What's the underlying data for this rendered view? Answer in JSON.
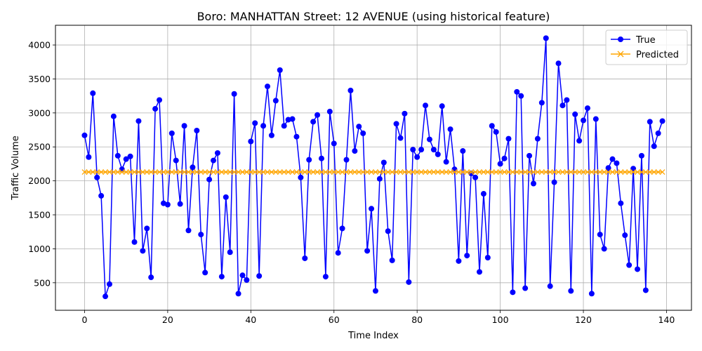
{
  "chart_data": {
    "type": "line",
    "title": "Boro: MANHATTAN Street: 12 AVENUE (using historical feature)",
    "xlabel": "Time Index",
    "ylabel": "Traffic Volume",
    "xlim": [
      -7,
      146
    ],
    "ylim": [
      95,
      4290
    ],
    "xticks": [
      0,
      20,
      40,
      60,
      80,
      100,
      120,
      140
    ],
    "yticks": [
      500,
      1000,
      1500,
      2000,
      2500,
      3000,
      3500,
      4000
    ],
    "grid": true,
    "legend_position": "top-right",
    "series": [
      {
        "name": "True",
        "color": "#0000ff",
        "marker": "circle",
        "values": [
          2670,
          2350,
          3290,
          2050,
          1780,
          300,
          480,
          2950,
          2370,
          2170,
          2320,
          2360,
          1100,
          2880,
          970,
          1300,
          580,
          3060,
          3190,
          1670,
          1650,
          2700,
          2300,
          1660,
          2810,
          1270,
          2200,
          2740,
          1210,
          650,
          2020,
          2300,
          2410,
          590,
          1760,
          950,
          3280,
          340,
          610,
          540,
          2580,
          2850,
          600,
          2810,
          3390,
          2670,
          3180,
          3630,
          2810,
          2900,
          2910,
          2650,
          2050,
          860,
          2310,
          2870,
          2970,
          2330,
          590,
          3020,
          2550,
          940,
          1300,
          2310,
          3330,
          2440,
          2800,
          2700,
          970,
          1590,
          380,
          2030,
          2270,
          1260,
          830,
          2840,
          2630,
          2990,
          510,
          2460,
          2350,
          2460,
          3110,
          2610,
          2460,
          2390,
          3100,
          2280,
          2760,
          2170,
          820,
          2440,
          900,
          2110,
          2050,
          660,
          1810,
          870,
          2810,
          2720,
          2250,
          2330,
          2620,
          360,
          3310,
          3250,
          420,
          2370,
          1960,
          2620,
          3150,
          4100,
          450,
          1980,
          3730,
          3110,
          3190,
          380,
          2980,
          2590,
          2890,
          3070,
          340,
          2910,
          1210,
          1000,
          2190,
          2320,
          2260,
          1670,
          1200,
          760,
          2180,
          700,
          2370,
          390,
          2870,
          2510,
          2700,
          2880
        ]
      },
      {
        "name": "Predicted",
        "color": "#ffa500",
        "marker": "x",
        "constant_value": 2130,
        "count": 140
      }
    ]
  }
}
